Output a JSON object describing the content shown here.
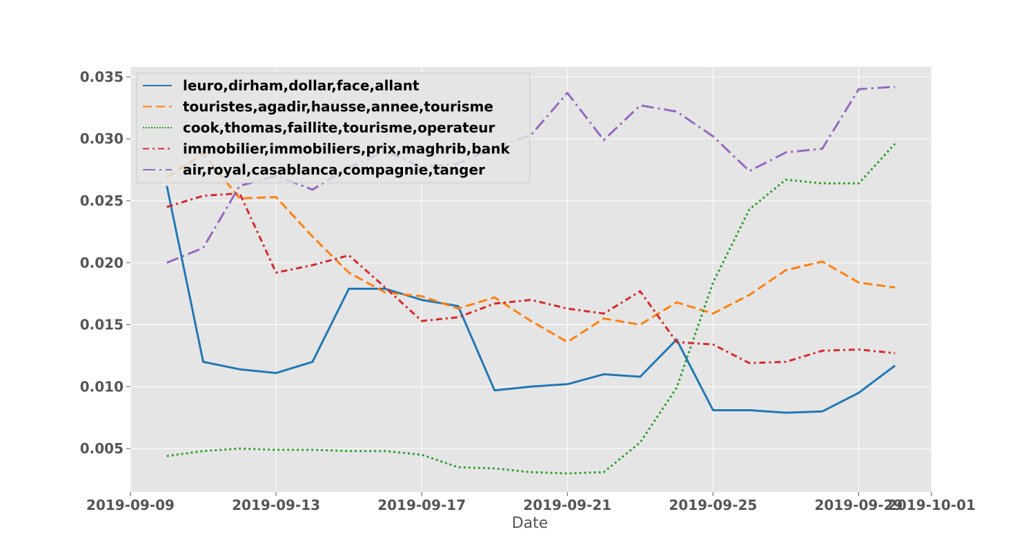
{
  "chart_data": {
    "type": "line",
    "xlabel": "Date",
    "ylabel": "",
    "title": "",
    "grid": true,
    "legend_position": "top-left",
    "xlim": [
      "2019-09-09",
      "2019-10-01"
    ],
    "ylim": [
      0.0015,
      0.0358
    ],
    "x_ticks": [
      "2019-09-09",
      "2019-09-13",
      "2019-09-17",
      "2019-09-21",
      "2019-09-25",
      "2019-09-29",
      "2019-10-01"
    ],
    "y_ticks": [
      "0.005",
      "0.010",
      "0.015",
      "0.020",
      "0.025",
      "0.030",
      "0.035"
    ],
    "x": [
      "2019-09-10",
      "2019-09-11",
      "2019-09-12",
      "2019-09-13",
      "2019-09-14",
      "2019-09-15",
      "2019-09-16",
      "2019-09-17",
      "2019-09-18",
      "2019-09-19",
      "2019-09-20",
      "2019-09-21",
      "2019-09-22",
      "2019-09-23",
      "2019-09-24",
      "2019-09-25",
      "2019-09-26",
      "2019-09-27",
      "2019-09-28",
      "2019-09-29",
      "2019-09-30"
    ],
    "series": [
      {
        "name": "leuro,dirham,dollar,face,allant",
        "color": "#1f77b4",
        "style": "solid",
        "values": [
          0.0262,
          0.012,
          0.0114,
          0.0111,
          0.012,
          0.0179,
          0.0179,
          0.017,
          0.0165,
          0.0097,
          0.01,
          0.0102,
          0.011,
          0.0108,
          0.0138,
          0.0081,
          0.0081,
          0.0079,
          0.008,
          0.0095,
          0.0117
        ]
      },
      {
        "name": "touristes,agadir,hausse,annee,tourisme",
        "color": "#ff7f0e",
        "style": "dashed",
        "values": [
          0.0269,
          0.0288,
          0.0252,
          0.0253,
          0.0221,
          0.0192,
          0.0176,
          0.0173,
          0.0163,
          0.0172,
          0.0153,
          0.0136,
          0.0155,
          0.015,
          0.0168,
          0.0159,
          0.0174,
          0.0194,
          0.0201,
          0.0184,
          0.018
        ]
      },
      {
        "name": "cook,thomas,faillite,tourisme,operateur",
        "color": "#2ca02c",
        "style": "dotted",
        "values": [
          0.0044,
          0.0048,
          0.005,
          0.0049,
          0.0049,
          0.0048,
          0.0048,
          0.0045,
          0.0035,
          0.0034,
          0.0031,
          0.003,
          0.0031,
          0.0055,
          0.0099,
          0.0184,
          0.0243,
          0.0267,
          0.0264,
          0.0264,
          0.0296
        ]
      },
      {
        "name": "immobilier,immobiliers,prix,maghrib,bank",
        "color": "#d62728",
        "style": "dashdot",
        "values": [
          0.0245,
          0.0254,
          0.0256,
          0.0192,
          0.0198,
          0.0206,
          0.018,
          0.0153,
          0.0156,
          0.0167,
          0.017,
          0.0163,
          0.0159,
          0.0177,
          0.0136,
          0.0134,
          0.0119,
          0.012,
          0.0129,
          0.013,
          0.0127
        ]
      },
      {
        "name": "air,royal,casablanca,compagnie,tanger",
        "color": "#9467bd",
        "style": "dashdotlong",
        "values": [
          0.02,
          0.0212,
          0.0262,
          0.027,
          0.0259,
          0.0277,
          0.029,
          0.0277,
          0.028,
          0.0293,
          0.0303,
          0.0337,
          0.0299,
          0.0327,
          0.0322,
          0.0302,
          0.0274,
          0.0289,
          0.0292,
          0.034,
          0.0342
        ]
      }
    ]
  }
}
